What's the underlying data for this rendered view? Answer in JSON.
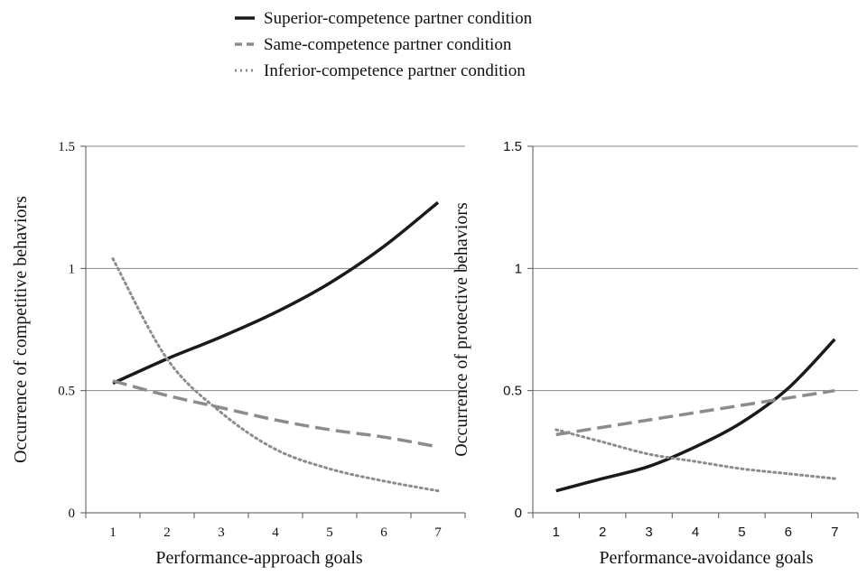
{
  "legend": [
    {
      "label": "Superior-competence partner condition",
      "color": "#1a1a1a",
      "dash": "solid"
    },
    {
      "label": "Same-competence partner condition",
      "color": "#8c8c8c",
      "dash": "dashed"
    },
    {
      "label": "Inferior-competence partner condition",
      "color": "#8c8c8c",
      "dash": "dotted"
    }
  ],
  "chart_data": [
    {
      "type": "line",
      "xlabel": "Performance-approach goals",
      "ylabel": "Occurrence of competitive behaviors",
      "x": [
        1,
        2,
        3,
        4,
        5,
        6,
        7
      ],
      "xlim": [
        0.5,
        7.5
      ],
      "ylim": [
        0,
        1.5
      ],
      "yticks": [
        "0",
        "0.5",
        "1",
        "1.5"
      ],
      "xticks": [
        "1",
        "2",
        "3",
        "4",
        "5",
        "6",
        "7"
      ],
      "grid": true,
      "series": [
        {
          "name": "Superior-competence partner condition",
          "values": [
            0.53,
            0.63,
            0.72,
            0.82,
            0.94,
            1.09,
            1.27
          ]
        },
        {
          "name": "Same-competence partner condition",
          "values": [
            0.54,
            0.48,
            0.43,
            0.38,
            0.34,
            0.31,
            0.27
          ]
        },
        {
          "name": "Inferior-competence partner condition",
          "values": [
            1.04,
            0.63,
            0.41,
            0.26,
            0.18,
            0.13,
            0.09
          ]
        }
      ]
    },
    {
      "type": "line",
      "xlabel": "Performance-avoidance goals",
      "ylabel": "Occurrence of protective behaviors",
      "x": [
        1,
        2,
        3,
        4,
        5,
        6,
        7
      ],
      "xlim": [
        0.5,
        7.5
      ],
      "ylim": [
        0,
        1.5
      ],
      "yticks": [
        "0",
        "0.5",
        "1",
        "1.5"
      ],
      "xticks": [
        "1",
        "2",
        "3",
        "4",
        "5",
        "6",
        "7"
      ],
      "grid": true,
      "series": [
        {
          "name": "Superior-competence partner condition",
          "values": [
            0.09,
            0.14,
            0.19,
            0.27,
            0.37,
            0.51,
            0.71
          ]
        },
        {
          "name": "Same-competence partner condition",
          "values": [
            0.32,
            0.35,
            0.38,
            0.41,
            0.44,
            0.47,
            0.5
          ]
        },
        {
          "name": "Inferior-competence partner condition",
          "values": [
            0.34,
            0.29,
            0.24,
            0.21,
            0.18,
            0.16,
            0.14
          ]
        }
      ]
    }
  ]
}
